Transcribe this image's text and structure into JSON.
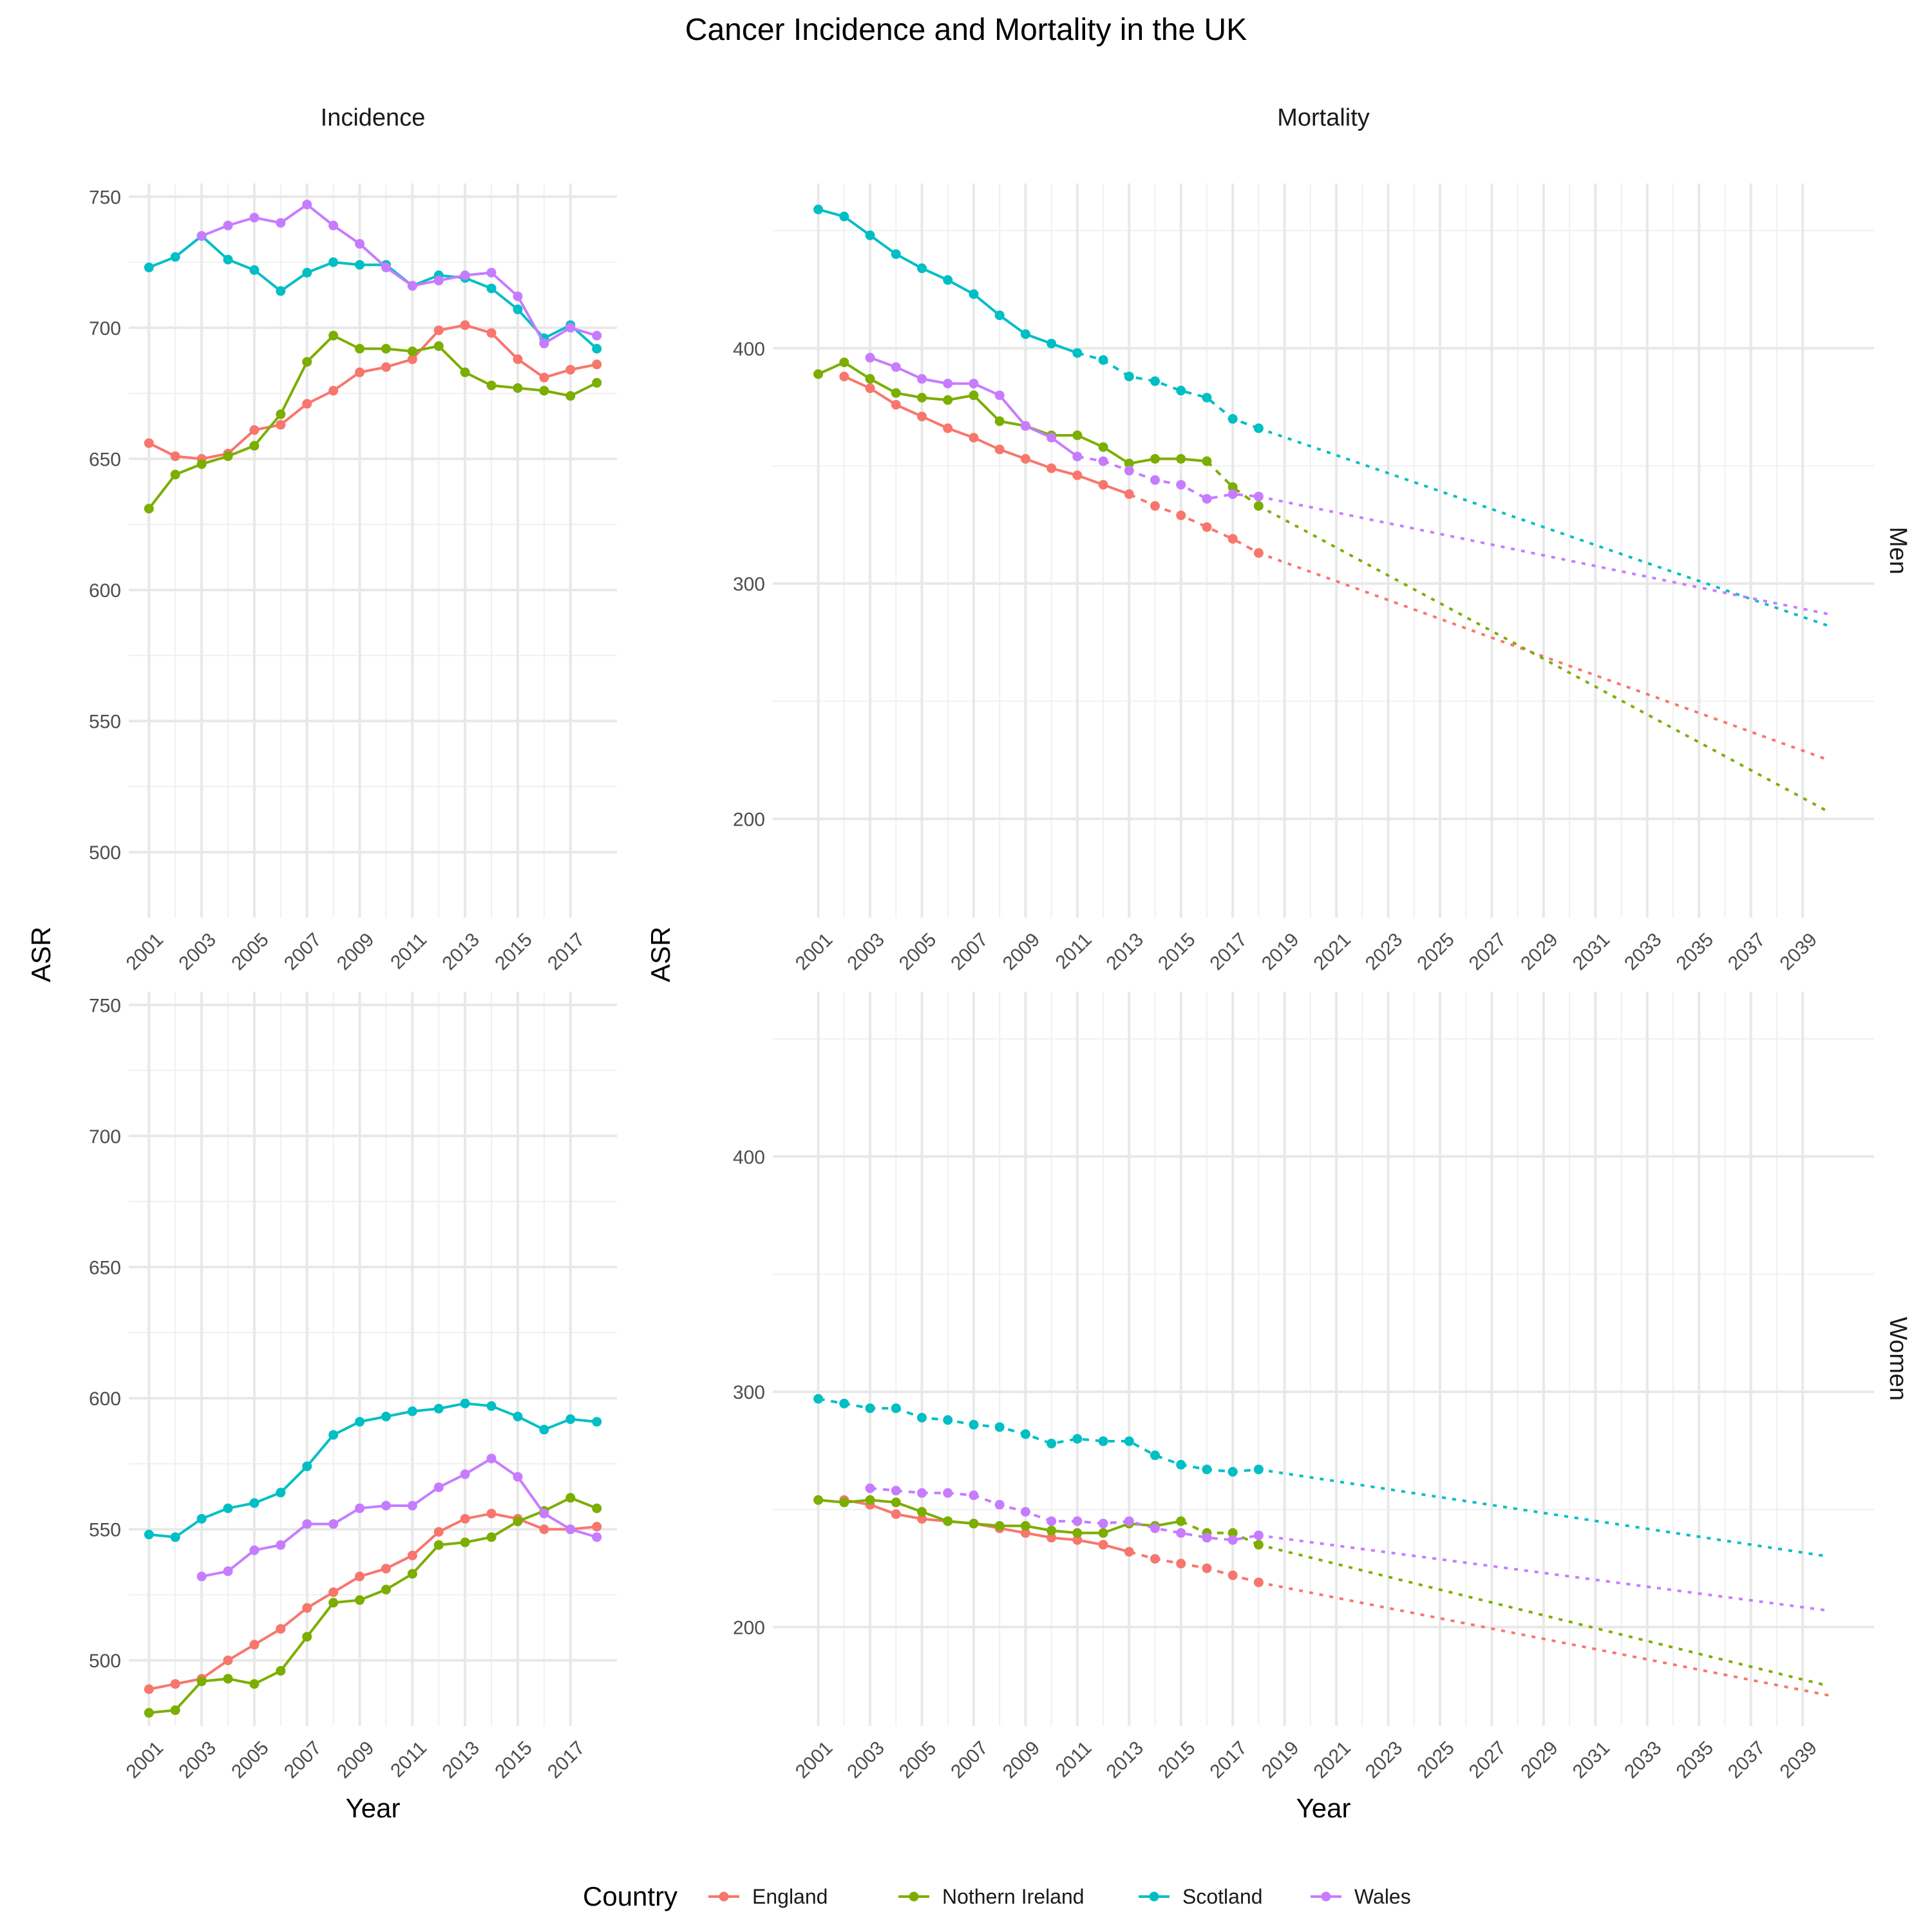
{
  "chart_data": {
    "type": "line",
    "title": "Cancer Incidence and Mortality in the UK",
    "facet_columns": [
      "Incidence",
      "Mortality"
    ],
    "facet_rows": [
      "Men",
      "Women"
    ],
    "xlabel": "Year",
    "ylabel": "ASR",
    "legend": {
      "title": "Country",
      "position": "bottom",
      "entries": [
        "England",
        "Nothern Ireland",
        "Scotland",
        "Wales"
      ]
    },
    "colors": {
      "England": "#F8766D",
      "Nothern Ireland": "#7CAE00",
      "Scotland": "#00BFC4",
      "Wales": "#C77CFF"
    },
    "grid": true,
    "panels": {
      "incidence": {
        "xlim": [
          2001,
          2018
        ],
        "x_ticks": [
          2001,
          2003,
          2005,
          2007,
          2009,
          2011,
          2013,
          2015,
          2017
        ],
        "ylim": [
          475,
          755
        ],
        "y_ticks": [
          500,
          550,
          600,
          650,
          700,
          750
        ],
        "men": [
          {
            "name": "England",
            "x": [
              2001,
              2002,
              2003,
              2004,
              2005,
              2006,
              2007,
              2008,
              2009,
              2010,
              2011,
              2012,
              2013,
              2014,
              2015,
              2016,
              2017,
              2018
            ],
            "y": [
              656,
              651,
              650,
              652,
              661,
              663,
              671,
              676,
              683,
              685,
              688,
              699,
              701,
              698,
              688,
              681,
              684,
              686
            ]
          },
          {
            "name": "Nothern Ireland",
            "x": [
              2001,
              2002,
              2003,
              2004,
              2005,
              2006,
              2007,
              2008,
              2009,
              2010,
              2011,
              2012,
              2013,
              2014,
              2015,
              2016,
              2017,
              2018
            ],
            "y": [
              631,
              644,
              648,
              651,
              655,
              667,
              687,
              697,
              692,
              692,
              691,
              693,
              683,
              678,
              677,
              676,
              674,
              679
            ]
          },
          {
            "name": "Scotland",
            "x": [
              2001,
              2002,
              2003,
              2004,
              2005,
              2006,
              2007,
              2008,
              2009,
              2010,
              2011,
              2012,
              2013,
              2014,
              2015,
              2016,
              2017,
              2018
            ],
            "y": [
              723,
              727,
              735,
              726,
              722,
              714,
              721,
              725,
              724,
              724,
              716,
              720,
              719,
              715,
              707,
              696,
              701,
              692
            ]
          },
          {
            "name": "Wales",
            "x": [
              2003,
              2004,
              2005,
              2006,
              2007,
              2008,
              2009,
              2010,
              2011,
              2012,
              2013,
              2014,
              2015,
              2016,
              2017,
              2018
            ],
            "y": [
              735,
              739,
              742,
              740,
              747,
              739,
              732,
              723,
              716,
              718,
              720,
              721,
              712,
              694,
              700,
              697
            ]
          }
        ],
        "women": [
          {
            "name": "England",
            "x": [
              2001,
              2002,
              2003,
              2004,
              2005,
              2006,
              2007,
              2008,
              2009,
              2010,
              2011,
              2012,
              2013,
              2014,
              2015,
              2016,
              2017,
              2018
            ],
            "y": [
              489,
              491,
              493,
              500,
              506,
              512,
              520,
              526,
              532,
              535,
              540,
              549,
              554,
              556,
              554,
              550,
              550,
              551
            ]
          },
          {
            "name": "Nothern Ireland",
            "x": [
              2001,
              2002,
              2003,
              2004,
              2005,
              2006,
              2007,
              2008,
              2009,
              2010,
              2011,
              2012,
              2013,
              2014,
              2015,
              2016,
              2017,
              2018
            ],
            "y": [
              480,
              481,
              492,
              493,
              491,
              496,
              509,
              522,
              523,
              527,
              533,
              544,
              545,
              547,
              553,
              557,
              562,
              558
            ]
          },
          {
            "name": "Scotland",
            "x": [
              2001,
              2002,
              2003,
              2004,
              2005,
              2006,
              2007,
              2008,
              2009,
              2010,
              2011,
              2012,
              2013,
              2014,
              2015,
              2016,
              2017,
              2018
            ],
            "y": [
              548,
              547,
              554,
              558,
              560,
              564,
              574,
              586,
              591,
              593,
              595,
              596,
              598,
              597,
              593,
              588,
              592,
              591
            ]
          },
          {
            "name": "Wales",
            "x": [
              2003,
              2004,
              2005,
              2006,
              2007,
              2008,
              2009,
              2010,
              2011,
              2012,
              2013,
              2014,
              2015,
              2016,
              2017,
              2018
            ],
            "y": [
              532,
              534,
              542,
              544,
              552,
              552,
              558,
              559,
              559,
              566,
              571,
              577,
              570,
              556,
              550,
              547
            ]
          }
        ]
      },
      "mortality": {
        "xlim": [
          2001,
          2040
        ],
        "x_ticks": [
          2001,
          2003,
          2005,
          2007,
          2009,
          2011,
          2013,
          2015,
          2017,
          2019,
          2021,
          2023,
          2025,
          2027,
          2029,
          2031,
          2033,
          2035,
          2037,
          2039
        ],
        "ylim": [
          158,
          470
        ],
        "y_ticks": [
          200,
          300,
          400
        ],
        "men": [
          {
            "name": "England",
            "observed": {
              "x": [
                2002,
                2003,
                2004,
                2005,
                2006,
                2007,
                2008,
                2009,
                2010,
                2011,
                2012,
                2013
              ],
              "y": [
                388,
                383,
                376,
                371,
                366,
                362,
                357,
                353,
                349,
                346,
                342,
                338
              ]
            },
            "dotted": {
              "x": [
                2014,
                2015,
                2016,
                2017,
                2018
              ],
              "y": [
                333,
                329,
                324,
                319,
                313
              ]
            },
            "projection_end": {
              "x": 2040,
              "y": 225
            }
          },
          {
            "name": "Nothern Ireland",
            "observed": {
              "x": [
                2001,
                2002,
                2003,
                2004,
                2005,
                2006,
                2007,
                2008,
                2009,
                2010,
                2011,
                2012,
                2013,
                2014,
                2015,
                2016
              ],
              "y": [
                389,
                394,
                387,
                381,
                379,
                378,
                380,
                369,
                367,
                363,
                363,
                358,
                351,
                353,
                353,
                352
              ]
            },
            "dotted": {
              "x": [
                2017,
                2018
              ],
              "y": [
                341,
                333
              ]
            },
            "projection_end": {
              "x": 2040,
              "y": 203
            }
          },
          {
            "name": "Scotland",
            "observed": {
              "x": [
                2001,
                2002,
                2003,
                2004,
                2005,
                2006,
                2007,
                2008,
                2009,
                2010,
                2011
              ],
              "y": [
                459,
                456,
                448,
                440,
                434,
                429,
                423,
                414,
                406,
                402,
                398
              ]
            },
            "dotted": {
              "x": [
                2012,
                2013,
                2014,
                2015,
                2016,
                2017,
                2018
              ],
              "y": [
                395,
                388,
                386,
                382,
                379,
                370,
                366
              ]
            },
            "projection_end": {
              "x": 2040,
              "y": 282
            }
          },
          {
            "name": "Wales",
            "observed": {
              "x": [
                2003,
                2004,
                2005,
                2006,
                2007,
                2008,
                2009,
                2010,
                2011
              ],
              "y": [
                396,
                392,
                387,
                385,
                385,
                380,
                367,
                362,
                354
              ]
            },
            "dotted": {
              "x": [
                2012,
                2013,
                2014,
                2015,
                2016,
                2017,
                2018
              ],
              "y": [
                352,
                348,
                344,
                342,
                336,
                338,
                337
              ]
            },
            "projection_end": {
              "x": 2040,
              "y": 287
            }
          }
        ],
        "women": [
          {
            "name": "England",
            "observed": {
              "x": [
                2002,
                2003,
                2004,
                2005,
                2006,
                2007,
                2008,
                2009,
                2010,
                2011,
                2012,
                2013
              ],
              "y": [
                254,
                252,
                248,
                246,
                245,
                244,
                242,
                240,
                238,
                237,
                235,
                232
              ]
            },
            "dotted": {
              "x": [
                2014,
                2015,
                2016,
                2017,
                2018
              ],
              "y": [
                229,
                227,
                225,
                222,
                219
              ]
            },
            "projection_end": {
              "x": 2040,
              "y": 171
            }
          },
          {
            "name": "Nothern Ireland",
            "observed": {
              "x": [
                2001,
                2002,
                2003,
                2004,
                2005,
                2006,
                2007,
                2008,
                2009,
                2010,
                2011,
                2012,
                2013,
                2014,
                2015
              ],
              "y": [
                254,
                253,
                254,
                253,
                249,
                245,
                244,
                243,
                243,
                241,
                240,
                240,
                244,
                243,
                245
              ]
            },
            "dotted": {
              "x": [
                2016,
                2017,
                2018
              ],
              "y": [
                240,
                240,
                235
              ]
            },
            "projection_end": {
              "x": 2040,
              "y": 175
            }
          },
          {
            "name": "Scotland",
            "observed": {
              "x": [
                2001
              ],
              "y": [
                297
              ]
            },
            "dotted": {
              "x": [
                2002,
                2003,
                2004,
                2005,
                2006,
                2007,
                2008,
                2009,
                2010,
                2011,
                2012,
                2013,
                2014,
                2015,
                2016,
                2017,
                2018
              ],
              "y": [
                295,
                293,
                293,
                289,
                288,
                286,
                285,
                282,
                278,
                280,
                279,
                279,
                273,
                269,
                267,
                266,
                267
              ]
            },
            "projection_end": {
              "x": 2040,
              "y": 230
            }
          },
          {
            "name": "Wales",
            "observed": {
              "x": [],
              "y": []
            },
            "dotted": {
              "x": [
                2003,
                2004,
                2005,
                2006,
                2007,
                2008,
                2009,
                2010,
                2011,
                2012,
                2013,
                2014,
                2015,
                2016,
                2017,
                2018
              ],
              "y": [
                259,
                258,
                257,
                257,
                256,
                252,
                249,
                245,
                245,
                244,
                245,
                242,
                240,
                238,
                237,
                239
              ]
            },
            "projection_end": {
              "x": 2040,
              "y": 207
            }
          }
        ]
      }
    }
  }
}
